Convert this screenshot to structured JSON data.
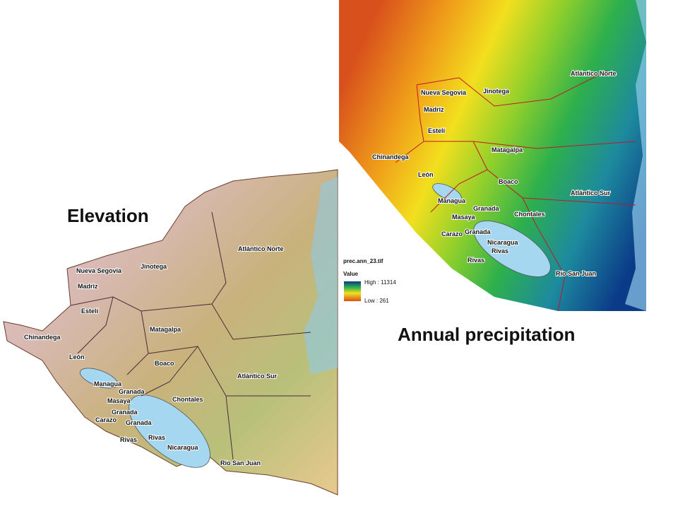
{
  "slide": {
    "elevation_title": "Elevation",
    "precipitation_title": "Annual precipitation"
  },
  "elevation_map": {
    "labels": [
      "Nueva Segovia",
      "Jinotega",
      "Madriz",
      "Estelí",
      "Atlántico Norte",
      "Chinandega",
      "Matagalpa",
      "León",
      "Boaco",
      "Managua",
      "Granada",
      "Atlántico Sur",
      "Masaya",
      "Chontales",
      "Granada",
      "Carazo",
      "Granada",
      "Rivas",
      "Rivas",
      "Nicaragua",
      "Río San Juan"
    ]
  },
  "precipitation_map": {
    "labels": [
      "Nueva Segovia",
      "Jinotega",
      "Madriz",
      "Atlántico Norte",
      "Estelí",
      "Chinandega",
      "Matagalpa",
      "León",
      "Boaco",
      "Atlántico Sur",
      "Managua",
      "Granada",
      "Masaya",
      "Chontales",
      "Granada",
      "Carazo",
      "Nicaragua",
      "Rivas",
      "Rivas",
      "Río San Juan"
    ],
    "legend": {
      "file": "prec.ann_23.tif",
      "field": "Value",
      "high": "High : 11314",
      "low": "Low : 261"
    }
  }
}
